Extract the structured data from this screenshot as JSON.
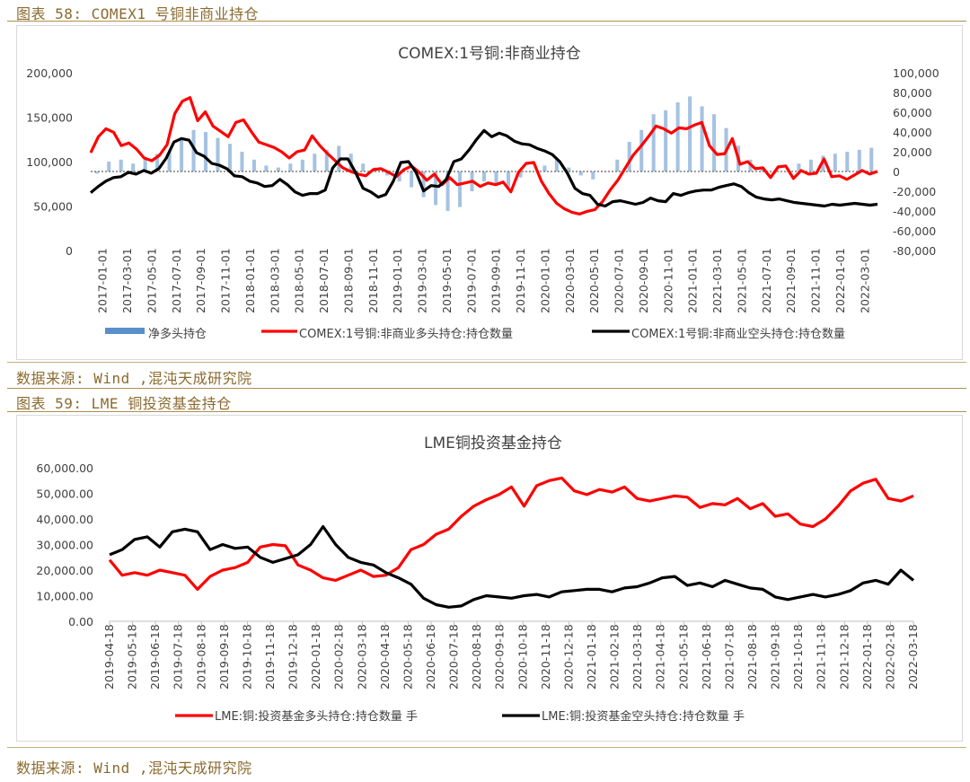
{
  "figure58": {
    "caption": "图表 58: COMEX1 号铜非商业持仓",
    "source": "数据来源: Wind ,混沌天成研究院",
    "chart_data": {
      "type": "line",
      "title": "COMEX:1号铜:非商业持仓",
      "x_ticks": [
        "2017-01-01",
        "2017-03-01",
        "2017-05-01",
        "2017-07-01",
        "2017-09-01",
        "2017-11-01",
        "2018-01-01",
        "2018-03-01",
        "2018-05-01",
        "2018-07-01",
        "2018-09-01",
        "2018-11-01",
        "2019-01-01",
        "2019-03-01",
        "2019-05-01",
        "2019-07-01",
        "2019-09-01",
        "2019-11-01",
        "2020-01-01",
        "2020-03-01",
        "2020-05-01",
        "2020-07-01",
        "2020-09-01",
        "2020-11-01",
        "2021-01-01",
        "2021-03-01",
        "2021-05-01",
        "2021-07-01",
        "2021-09-01",
        "2021-11-01",
        "2022-01-01",
        "2022-03-01"
      ],
      "y_left": {
        "ticks": [
          "200,000",
          "150,000",
          "100,000",
          "50,000",
          "0"
        ],
        "range": [
          0,
          200000
        ]
      },
      "y_right": {
        "ticks": [
          "100,000",
          "80,000",
          "60,000",
          "40,000",
          "20,000",
          "0",
          "-20,000",
          "-40,000",
          "-60,000",
          "-80,000"
        ],
        "range": [
          -80000,
          100000
        ]
      },
      "series": [
        {
          "name": "净多头持仓",
          "axis": "right",
          "kind": "bar",
          "color": "#5b8fc9",
          "values": [
            -2,
            10,
            12,
            8,
            14,
            18,
            20,
            34,
            42,
            40,
            34,
            28,
            20,
            12,
            6,
            4,
            8,
            12,
            18,
            22,
            26,
            18,
            8,
            4,
            -4,
            -10,
            -16,
            -26,
            -34,
            -40,
            -36,
            -20,
            -10,
            -14,
            -16,
            -6,
            0,
            6,
            12,
            4,
            -4,
            -8,
            0,
            12,
            30,
            42,
            58,
            62,
            70,
            76,
            66,
            58,
            44,
            26,
            12,
            4,
            -2,
            0,
            8,
            12,
            16,
            18,
            20,
            22,
            24
          ]
        },
        {
          "name": "COMEX:1号铜:非商业多头持仓:持仓数量",
          "axis": "left",
          "kind": "line",
          "color": "#ff0000",
          "values": [
            110,
            128,
            137,
            133,
            118,
            121,
            114,
            104,
            101,
            107,
            119,
            154,
            168,
            172,
            146,
            156,
            140,
            134,
            128,
            144,
            147,
            134,
            122,
            119,
            116,
            111,
            104,
            111,
            113,
            129,
            118,
            109,
            101,
            93,
            89,
            86,
            84,
            91,
            92,
            88,
            83,
            91,
            95,
            88,
            79,
            86,
            74,
            82,
            74,
            76,
            78,
            72,
            76,
            74,
            77,
            66,
            88,
            98,
            99,
            78,
            64,
            53,
            47,
            43,
            41,
            44,
            46,
            55,
            68,
            79,
            93,
            107,
            117,
            128,
            140,
            137,
            132,
            138,
            137,
            141,
            144,
            118,
            108,
            109,
            126,
            97,
            100,
            92,
            93,
            82,
            94,
            95,
            81,
            90,
            86,
            87,
            103,
            83,
            84,
            80,
            85,
            90,
            86,
            89
          ]
        },
        {
          "name": "COMEX:1号铜:非商业空头持仓:持仓数量",
          "axis": "left",
          "kind": "line",
          "color": "#000000",
          "values": [
            65,
            72,
            78,
            82,
            83,
            88,
            86,
            90,
            87,
            92,
            104,
            122,
            126,
            124,
            110,
            106,
            98,
            96,
            92,
            84,
            83,
            78,
            76,
            72,
            73,
            80,
            74,
            66,
            62,
            64,
            64,
            68,
            93,
            103,
            103,
            88,
            70,
            66,
            60,
            63,
            78,
            99,
            100,
            88,
            67,
            73,
            72,
            80,
            100,
            103,
            113,
            125,
            135,
            128,
            132,
            129,
            123,
            120,
            119,
            115,
            112,
            108,
            100,
            87,
            70,
            64,
            62,
            52,
            50,
            55,
            56,
            54,
            52,
            54,
            59,
            56,
            55,
            64,
            62,
            65,
            67,
            68,
            68,
            71,
            73,
            75,
            72,
            65,
            60,
            58,
            57,
            58,
            56,
            54,
            53,
            52,
            51,
            50,
            52,
            51,
            52,
            53,
            52,
            51,
            52
          ]
        }
      ]
    }
  },
  "figure59": {
    "caption": "图表 59: LME 铜投资基金持仓",
    "source": "数据来源: Wind ,混沌天成研究院",
    "chart_data": {
      "type": "line",
      "title": "LME铜投资基金持仓",
      "x_ticks": [
        "2019-04-18",
        "2019-05-18",
        "2019-06-18",
        "2019-07-18",
        "2019-08-18",
        "2019-09-18",
        "2019-10-18",
        "2019-11-18",
        "2019-12-18",
        "2020-01-18",
        "2020-02-18",
        "2020-03-18",
        "2020-04-18",
        "2020-05-18",
        "2020-06-18",
        "2020-07-18",
        "2020-08-18",
        "2020-09-18",
        "2020-10-18",
        "2020-11-18",
        "2020-12-18",
        "2021-01-18",
        "2021-02-18",
        "2021-03-18",
        "2021-04-18",
        "2021-05-18",
        "2021-06-18",
        "2021-07-18",
        "2021-08-18",
        "2021-09-18",
        "2021-10-18",
        "2021-11-18",
        "2021-12-18",
        "2022-01-18",
        "2022-02-18",
        "2022-03-18"
      ],
      "y_axis": {
        "ticks": [
          "60,000.00",
          "50,000.00",
          "40,000.00",
          "30,000.00",
          "20,000.00",
          "10,000.00",
          "0.00"
        ],
        "range": [
          0,
          60000
        ]
      },
      "series": [
        {
          "name": "LME:铜:投资基金多头持仓:持仓数量 手",
          "color": "#ff0000",
          "values": [
            24000,
            18000,
            19000,
            18000,
            20000,
            19000,
            18000,
            12500,
            17500,
            20000,
            21000,
            23000,
            29000,
            30000,
            29500,
            22000,
            20000,
            17000,
            16000,
            18000,
            20000,
            17500,
            18000,
            21000,
            28000,
            30000,
            34000,
            36000,
            41000,
            45000,
            47500,
            49500,
            52500,
            45000,
            53000,
            55000,
            56000,
            51000,
            49500,
            51500,
            50500,
            52500,
            48000,
            47000,
            48000,
            49000,
            48500,
            44500,
            46000,
            45500,
            48000,
            44000,
            46000,
            41000,
            42000,
            38000,
            37000,
            40000,
            45000,
            51000,
            54000,
            55500,
            48000,
            47000,
            49000
          ]
        },
        {
          "name": "LME:铜:投资基金空头持仓:持仓数量 手",
          "color": "#000000",
          "values": [
            26000,
            28000,
            32000,
            33000,
            29000,
            35000,
            36000,
            35000,
            28000,
            30000,
            28500,
            29000,
            25000,
            23000,
            24500,
            26000,
            30000,
            37000,
            30000,
            25000,
            23000,
            22000,
            19000,
            17000,
            14500,
            9000,
            6500,
            5500,
            6000,
            8500,
            10000,
            9500,
            9000,
            10000,
            10500,
            9500,
            11500,
            12000,
            12500,
            12500,
            11500,
            13000,
            13500,
            15000,
            17000,
            17500,
            14000,
            15000,
            13500,
            16000,
            14500,
            13000,
            12500,
            9500,
            8500,
            9500,
            10500,
            9500,
            10500,
            12000,
            15000,
            16000,
            14500,
            20000,
            16000
          ]
        }
      ]
    }
  }
}
